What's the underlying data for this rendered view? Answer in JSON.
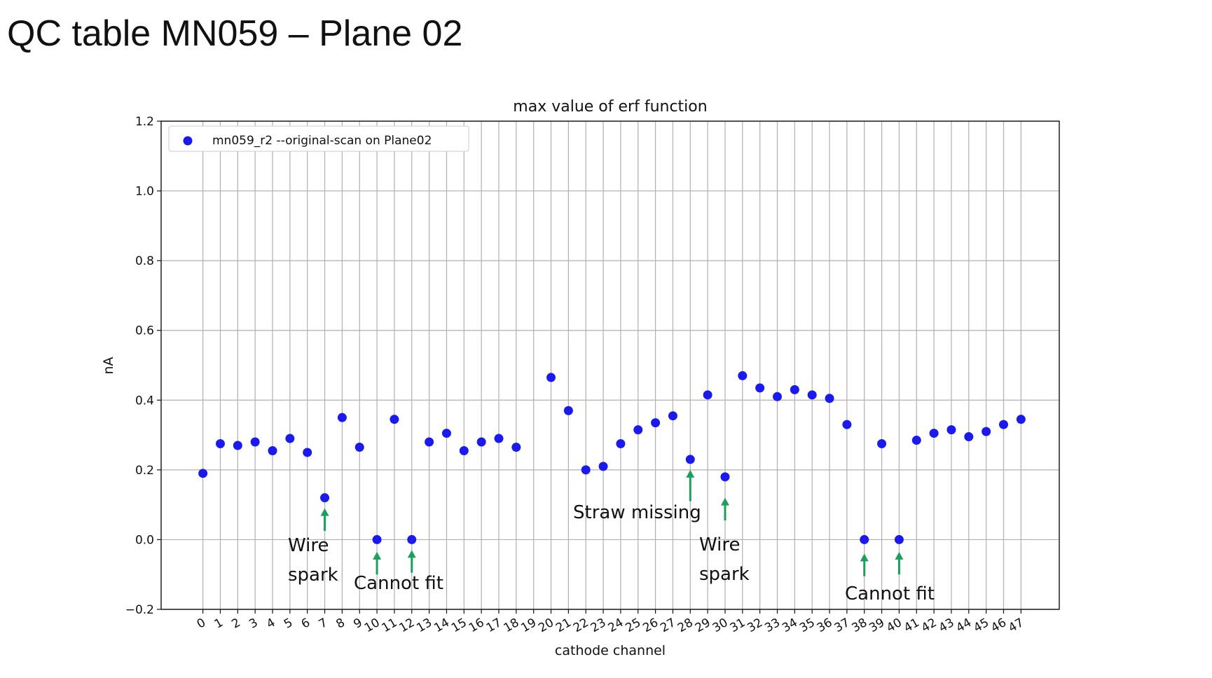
{
  "slide": {
    "title": "QC table MN059 – Plane 02"
  },
  "chart_data": {
    "type": "scatter",
    "title": "max value of erf function",
    "xlabel": "cathode channel",
    "ylabel": "nA",
    "ylim": [
      -0.2,
      1.2
    ],
    "xlim": [
      -2.4,
      49.2
    ],
    "yticks": [
      -0.2,
      0.0,
      0.2,
      0.4,
      0.6,
      0.8,
      1.0,
      1.2
    ],
    "ytick_labels": [
      "−0.2",
      "0.0",
      "0.2",
      "0.4",
      "0.6",
      "0.8",
      "1.0",
      "1.2"
    ],
    "xticks": [
      0,
      1,
      2,
      3,
      4,
      5,
      6,
      7,
      8,
      9,
      10,
      11,
      12,
      13,
      14,
      15,
      16,
      17,
      18,
      19,
      20,
      21,
      22,
      23,
      24,
      25,
      26,
      27,
      28,
      29,
      30,
      31,
      32,
      33,
      34,
      35,
      36,
      37,
      38,
      39,
      40,
      41,
      42,
      43,
      44,
      45,
      46,
      47
    ],
    "xtick_labels": [
      "0",
      "1",
      "2",
      "3",
      "4",
      "5",
      "6",
      "7",
      "8",
      "9",
      "10",
      "11",
      "12",
      "13",
      "14",
      "15",
      "16",
      "17",
      "18",
      "19",
      "20",
      "21",
      "22",
      "23",
      "24",
      "25",
      "26",
      "27",
      "28",
      "29",
      "30",
      "31",
      "32",
      "33",
      "34",
      "35",
      "36",
      "37",
      "38",
      "39",
      "40",
      "41",
      "42",
      "43",
      "44",
      "45",
      "46",
      "47"
    ],
    "grid": true,
    "legend_position": "top-left",
    "series": [
      {
        "name": "mn059_r2 --original-scan on Plane02",
        "color": "#1a1aee",
        "points": [
          {
            "x": 0,
            "y": 0.19
          },
          {
            "x": 1,
            "y": 0.275
          },
          {
            "x": 2,
            "y": 0.27
          },
          {
            "x": 3,
            "y": 0.28
          },
          {
            "x": 4,
            "y": 0.255
          },
          {
            "x": 5,
            "y": 0.29
          },
          {
            "x": 6,
            "y": 0.25
          },
          {
            "x": 7,
            "y": 0.12
          },
          {
            "x": 8,
            "y": 0.35
          },
          {
            "x": 9,
            "y": 0.265
          },
          {
            "x": 10,
            "y": 0.0
          },
          {
            "x": 11,
            "y": 0.345
          },
          {
            "x": 12,
            "y": 0.0
          },
          {
            "x": 13,
            "y": 0.28
          },
          {
            "x": 14,
            "y": 0.305
          },
          {
            "x": 15,
            "y": 0.255
          },
          {
            "x": 16,
            "y": 0.28
          },
          {
            "x": 17,
            "y": 0.29
          },
          {
            "x": 18,
            "y": 0.265
          },
          {
            "x": 20,
            "y": 0.465
          },
          {
            "x": 21,
            "y": 0.37
          },
          {
            "x": 22,
            "y": 0.2
          },
          {
            "x": 23,
            "y": 0.21
          },
          {
            "x": 24,
            "y": 0.275
          },
          {
            "x": 25,
            "y": 0.315
          },
          {
            "x": 26,
            "y": 0.335
          },
          {
            "x": 27,
            "y": 0.355
          },
          {
            "x": 28,
            "y": 0.23
          },
          {
            "x": 29,
            "y": 0.415
          },
          {
            "x": 30,
            "y": 0.18
          },
          {
            "x": 31,
            "y": 0.47
          },
          {
            "x": 32,
            "y": 0.435
          },
          {
            "x": 33,
            "y": 0.41
          },
          {
            "x": 34,
            "y": 0.43
          },
          {
            "x": 35,
            "y": 0.415
          },
          {
            "x": 36,
            "y": 0.405
          },
          {
            "x": 37,
            "y": 0.33
          },
          {
            "x": 38,
            "y": 0.0
          },
          {
            "x": 39,
            "y": 0.275
          },
          {
            "x": 40,
            "y": 0.0
          },
          {
            "x": 41,
            "y": 0.285
          },
          {
            "x": 42,
            "y": 0.305
          },
          {
            "x": 43,
            "y": 0.315
          },
          {
            "x": 44,
            "y": 0.295
          },
          {
            "x": 45,
            "y": 0.31
          },
          {
            "x": 46,
            "y": 0.33
          },
          {
            "x": 47,
            "y": 0.345
          }
        ]
      }
    ],
    "annotation_color": "#1aa05a",
    "annotations": [
      {
        "text": "Wire spark",
        "lines": [
          "Wire",
          "spark"
        ],
        "arrows": [
          {
            "x": 7,
            "y_tip": 0.09,
            "y_tail": 0.025
          }
        ]
      },
      {
        "text": "Cannot fit",
        "lines": [
          "Cannot fit"
        ],
        "arrows": [
          {
            "x": 10,
            "y_tip": -0.035,
            "y_tail": -0.1
          },
          {
            "x": 12,
            "y_tip": -0.03,
            "y_tail": -0.095
          }
        ]
      },
      {
        "text": "Straw missing",
        "lines": [
          "Straw missing"
        ],
        "arrows": [
          {
            "x": 28,
            "y_tip": 0.2,
            "y_tail": 0.11
          }
        ]
      },
      {
        "text": "Wire spark",
        "lines": [
          "Wire",
          "spark"
        ],
        "arrows": [
          {
            "x": 30,
            "y_tip": 0.12,
            "y_tail": 0.055
          }
        ]
      },
      {
        "text": "Cannot fit",
        "lines": [
          "Cannot fit"
        ],
        "arrows": [
          {
            "x": 38,
            "y_tip": -0.04,
            "y_tail": -0.105
          },
          {
            "x": 40,
            "y_tip": -0.035,
            "y_tail": -0.1
          }
        ]
      }
    ]
  }
}
